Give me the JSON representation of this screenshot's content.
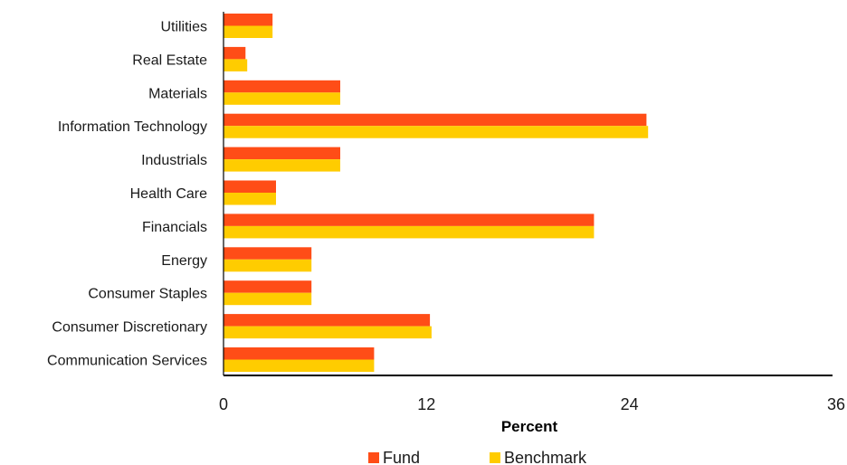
{
  "chart_data": {
    "type": "bar",
    "orientation": "horizontal",
    "categories": [
      "Utilities",
      "Real Estate",
      "Materials",
      "Information Technology",
      "Industrials",
      "Health Care",
      "Financials",
      "Energy",
      "Consumer Staples",
      "Consumer Discretionary",
      "Communication Services"
    ],
    "series": [
      {
        "name": "Fund",
        "color": "#ff4d17",
        "values": [
          2.9,
          1.3,
          6.9,
          25.0,
          6.9,
          3.1,
          21.9,
          5.2,
          5.2,
          12.2,
          8.9
        ]
      },
      {
        "name": "Benchmark",
        "color": "#ffcc00",
        "values": [
          2.9,
          1.4,
          6.9,
          25.1,
          6.9,
          3.1,
          21.9,
          5.2,
          5.2,
          12.3,
          8.9
        ]
      }
    ],
    "xlabel": "Percent",
    "ylabel": "",
    "xlim": [
      0,
      36
    ],
    "xticks": [
      "0",
      "12",
      "24",
      "36"
    ],
    "grid": false,
    "legend_position": "bottom-center"
  }
}
